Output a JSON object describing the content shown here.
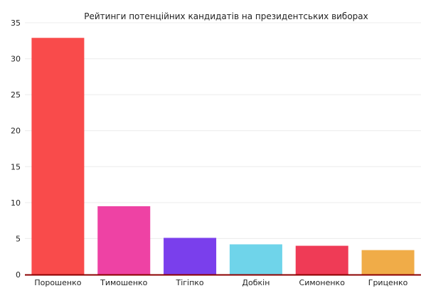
{
  "chart_data": {
    "type": "bar",
    "title": "Рейтинги потенційних кандидатів на президентських виборах",
    "xlabel": "",
    "ylabel": "",
    "categories": [
      "Порошенко",
      "Тимошенко",
      "Тігіпко",
      "Добкін",
      "Симоненко",
      "Гриценко"
    ],
    "values": [
      32.9,
      9.5,
      5.1,
      4.2,
      4.0,
      3.4
    ],
    "colors": [
      "#f94b4b",
      "#ee42a4",
      "#7a3fec",
      "#6fd4ea",
      "#ef3b56",
      "#f0ac48"
    ],
    "ylim": [
      0,
      35
    ],
    "yticks": [
      0,
      5,
      10,
      15,
      20,
      25,
      30,
      35
    ],
    "grid": true,
    "axis_color": "#8b0000"
  }
}
